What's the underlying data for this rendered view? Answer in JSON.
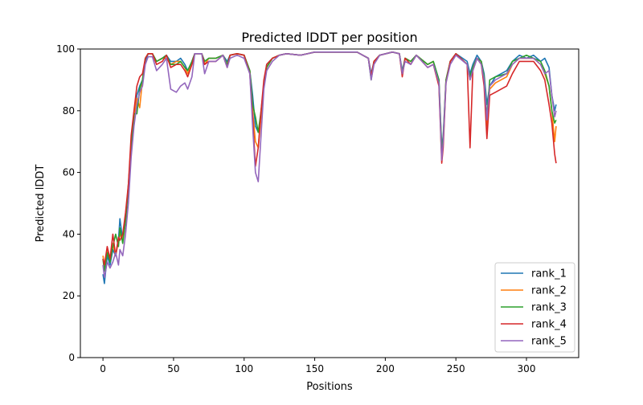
{
  "chart_data": {
    "type": "line",
    "title": "Predicted lDDT per position",
    "xlabel": "Positions",
    "ylabel": "Predicted lDDT",
    "xlim": [
      -16,
      337
    ],
    "ylim": [
      0,
      100
    ],
    "xticks": [
      0,
      50,
      100,
      150,
      200,
      250,
      300
    ],
    "yticks": [
      0,
      20,
      40,
      60,
      80,
      100
    ],
    "grid": false,
    "legend_position": "bottom-right",
    "x": [
      0,
      1,
      3,
      5,
      7,
      9,
      11,
      12,
      14,
      16,
      18,
      20,
      22,
      24,
      26,
      28,
      30,
      32,
      35,
      38,
      42,
      45,
      48,
      52,
      55,
      58,
      60,
      63,
      65,
      70,
      72,
      75,
      80,
      85,
      88,
      90,
      95,
      100,
      104,
      106,
      108,
      110,
      112,
      114,
      116,
      120,
      125,
      130,
      140,
      150,
      170,
      180,
      188,
      190,
      192,
      196,
      205,
      210,
      212,
      214,
      218,
      222,
      230,
      234,
      238,
      240,
      241,
      243,
      246,
      250,
      258,
      260,
      262,
      265,
      268,
      270,
      272,
      274,
      278,
      286,
      290,
      295,
      300,
      305,
      310,
      313,
      316,
      318,
      320,
      321
    ],
    "series": [
      {
        "name": "rank_1",
        "color": "#1f77b4",
        "values": [
          27,
          24,
          33,
          30,
          35,
          33,
          38,
          45,
          38,
          44,
          55,
          68,
          78,
          85,
          88,
          90,
          96,
          98.5,
          98.5,
          96,
          97,
          98,
          96,
          96,
          97,
          95,
          93,
          96,
          98.5,
          98.5,
          96,
          97,
          97,
          98,
          96,
          98,
          98.5,
          98,
          93,
          85,
          75,
          73,
          78,
          88,
          95,
          97,
          98,
          98.5,
          98,
          99,
          99,
          99,
          97,
          92,
          96,
          98,
          99,
          98.5,
          93,
          97,
          96,
          98,
          95,
          96,
          90,
          68,
          72,
          90,
          96,
          98.5,
          96,
          92,
          95,
          98,
          96,
          92,
          82,
          88,
          91,
          93,
          96,
          98,
          97,
          98,
          96,
          97,
          94,
          85,
          80,
          82
        ]
      },
      {
        "name": "rank_2",
        "color": "#ff7f0e",
        "values": [
          33,
          30,
          35,
          31,
          37,
          33,
          38,
          40,
          38,
          46,
          55,
          70,
          78,
          84,
          81,
          90,
          97,
          98.5,
          98.5,
          96,
          97,
          97,
          95,
          96,
          96,
          94,
          92,
          95,
          98.5,
          98.5,
          95,
          97,
          97,
          98,
          95,
          98,
          98.5,
          98,
          93,
          80,
          70,
          68,
          78,
          88,
          94,
          97,
          98,
          98.5,
          98,
          99,
          99,
          99,
          97,
          91,
          96,
          98,
          99,
          98.5,
          92,
          97,
          96,
          98,
          95,
          96,
          89,
          66,
          70,
          90,
          96,
          98.5,
          95,
          90,
          94,
          97,
          96,
          90,
          75,
          87,
          89,
          91,
          95,
          97,
          97,
          97,
          95,
          92,
          88,
          80,
          70,
          75
        ]
      },
      {
        "name": "rank_3",
        "color": "#2ca02c",
        "values": [
          32,
          28,
          34,
          31,
          36,
          40,
          36,
          42,
          37,
          44,
          56,
          68,
          79,
          79,
          87,
          90,
          97,
          98.5,
          98.5,
          96,
          97,
          98,
          95,
          95,
          96,
          94,
          93,
          96,
          98.5,
          98.5,
          96,
          97,
          97,
          98,
          95,
          98,
          98.5,
          98,
          93,
          82,
          78,
          73,
          80,
          88,
          94,
          97,
          98,
          98.5,
          98,
          99,
          99,
          99,
          97,
          90,
          96,
          98,
          99,
          98.5,
          92,
          97,
          96,
          98,
          95,
          96,
          90,
          67,
          71,
          90,
          96,
          98.5,
          95,
          91,
          94,
          97,
          96,
          91,
          78,
          90,
          91,
          92,
          96,
          97,
          98,
          97,
          96,
          93,
          88,
          80,
          76,
          77
        ]
      },
      {
        "name": "rank_4",
        "color": "#d62728",
        "values": [
          32,
          30,
          36,
          32,
          40,
          33,
          39,
          38,
          40,
          47,
          56,
          72,
          80,
          88,
          91,
          92,
          97,
          98.5,
          98.5,
          95,
          96,
          98,
          94,
          95,
          95,
          93,
          91,
          95,
          98.5,
          98.5,
          95,
          96,
          96,
          98,
          94,
          98,
          98.5,
          98,
          92,
          78,
          62,
          68,
          80,
          90,
          95,
          97,
          98,
          98.5,
          98,
          99,
          99,
          99,
          97,
          91,
          96,
          98,
          99,
          98.5,
          91,
          97,
          95,
          98,
          94,
          95,
          88,
          63,
          68,
          89,
          96,
          98.5,
          95,
          68,
          93,
          97,
          95,
          88,
          71,
          85,
          86,
          88,
          92,
          96,
          96,
          96,
          93,
          90,
          82,
          76,
          66,
          63
        ]
      },
      {
        "name": "rank_5",
        "color": "#9467bd",
        "values": [
          30,
          26,
          31,
          29,
          31,
          34,
          30,
          35,
          33,
          40,
          50,
          65,
          75,
          82,
          86,
          88,
          95,
          97.5,
          97.5,
          93,
          95,
          97,
          87,
          86,
          88,
          89,
          87,
          91,
          98.5,
          98.5,
          92,
          96,
          96,
          98,
          94,
          97,
          98,
          97,
          92,
          75,
          60,
          57,
          72,
          87,
          93,
          96,
          98,
          98.5,
          98,
          99,
          99,
          99,
          97,
          90,
          95,
          98,
          99,
          98.5,
          92,
          96,
          95,
          98,
          94,
          95,
          89,
          64,
          70,
          89,
          95,
          98,
          95,
          90,
          93,
          97,
          95,
          90,
          77,
          88,
          90,
          92,
          95,
          97,
          97,
          97,
          95,
          92,
          93,
          85,
          78,
          80
        ]
      }
    ]
  }
}
